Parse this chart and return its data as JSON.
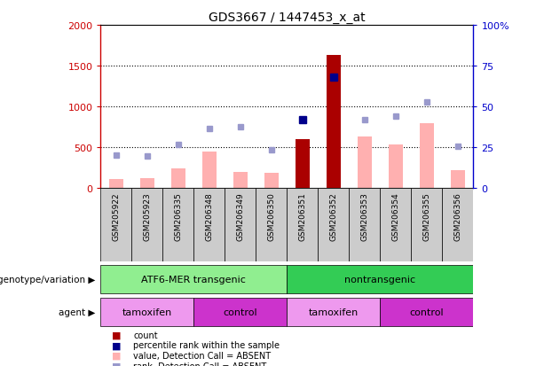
{
  "title": "GDS3667 / 1447453_x_at",
  "samples": [
    "GSM205922",
    "GSM205923",
    "GSM206335",
    "GSM206348",
    "GSM206349",
    "GSM206350",
    "GSM206351",
    "GSM206352",
    "GSM206353",
    "GSM206354",
    "GSM206355",
    "GSM206356"
  ],
  "count_values": [
    null,
    null,
    null,
    null,
    null,
    null,
    600,
    1630,
    null,
    null,
    null,
    null
  ],
  "percentile_rank_values": [
    null,
    null,
    null,
    null,
    null,
    null,
    840,
    1360,
    null,
    null,
    null,
    null
  ],
  "absent_value_heights": [
    110,
    120,
    240,
    450,
    200,
    190,
    null,
    null,
    630,
    530,
    800,
    215
  ],
  "absent_rank_heights": [
    400,
    390,
    530,
    730,
    750,
    470,
    null,
    null,
    840,
    880,
    1060,
    510
  ],
  "ylim": [
    0,
    2000
  ],
  "yticks_left": [
    0,
    500,
    1000,
    1500,
    2000
  ],
  "ytick_labels_left": [
    "0",
    "500",
    "1000",
    "1500",
    "2000"
  ],
  "ytick_labels_right": [
    "0",
    "25",
    "50",
    "75",
    "100%"
  ],
  "left_axis_color": "#cc0000",
  "right_axis_color": "#0000cc",
  "bar_red_color": "#aa0000",
  "bar_pink_color": "#ffb0b0",
  "marker_blue_dark": "#00008b",
  "marker_blue_light": "#9999cc",
  "background_color": "#ffffff",
  "genotype_groups": [
    {
      "label": "ATF6-MER transgenic",
      "start": 0,
      "end": 6,
      "color": "#90ee90"
    },
    {
      "label": "nontransgenic",
      "start": 6,
      "end": 12,
      "color": "#33cc55"
    }
  ],
  "agent_groups": [
    {
      "label": "tamoxifen",
      "start": 0,
      "end": 3,
      "color": "#ee99ee"
    },
    {
      "label": "control",
      "start": 3,
      "end": 6,
      "color": "#cc33cc"
    },
    {
      "label": "tamoxifen",
      "start": 6,
      "end": 9,
      "color": "#ee99ee"
    },
    {
      "label": "control",
      "start": 9,
      "end": 12,
      "color": "#cc33cc"
    }
  ],
  "legend_items": [
    {
      "label": "count",
      "color": "#aa0000"
    },
    {
      "label": "percentile rank within the sample",
      "color": "#00008b"
    },
    {
      "label": "value, Detection Call = ABSENT",
      "color": "#ffb0b0"
    },
    {
      "label": "rank, Detection Call = ABSENT",
      "color": "#9999cc"
    }
  ],
  "n_samples": 12,
  "bar_width": 0.45
}
